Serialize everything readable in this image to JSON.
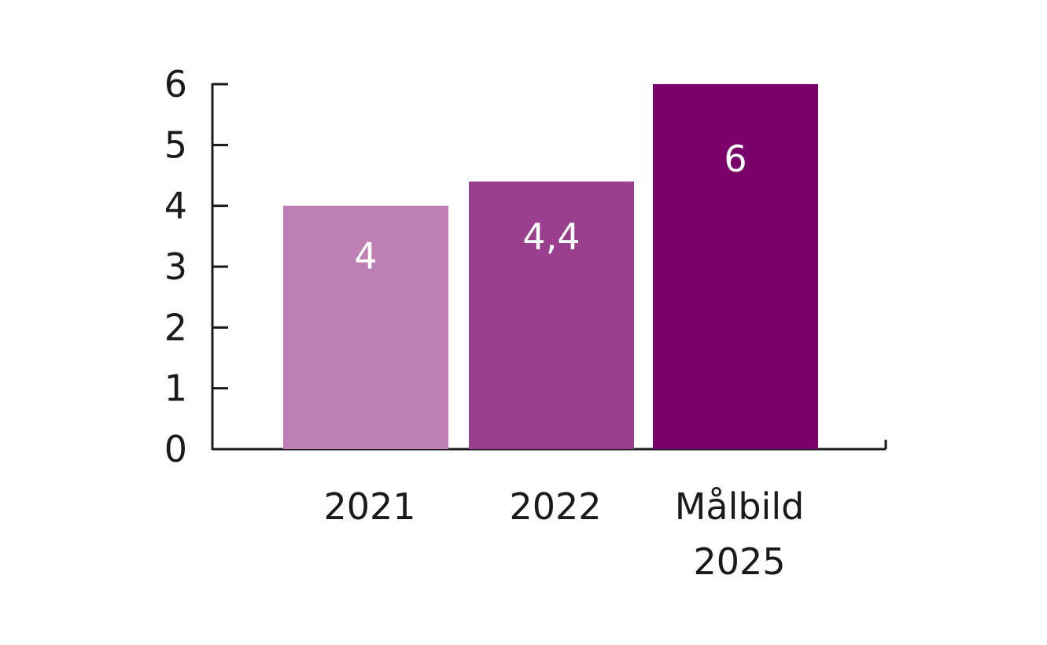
{
  "chart_data": {
    "type": "bar",
    "categories": [
      [
        "2021"
      ],
      [
        "2022"
      ],
      [
        "Målbild",
        "2025"
      ]
    ],
    "values": [
      4,
      4.4,
      6
    ],
    "data_labels": [
      "4",
      "4,4",
      "6"
    ],
    "bar_colors": [
      "#bd7fb4",
      "#9a3f8d",
      "#7a006a"
    ],
    "ylim": [
      0,
      6
    ],
    "yticks": [
      0,
      1,
      2,
      3,
      4,
      5,
      6
    ],
    "ytick_labels": [
      "0",
      "1",
      "2",
      "3",
      "4",
      "5",
      "6"
    ],
    "title": "",
    "xlabel": "",
    "ylabel": "",
    "grid": false,
    "legend": "none"
  }
}
